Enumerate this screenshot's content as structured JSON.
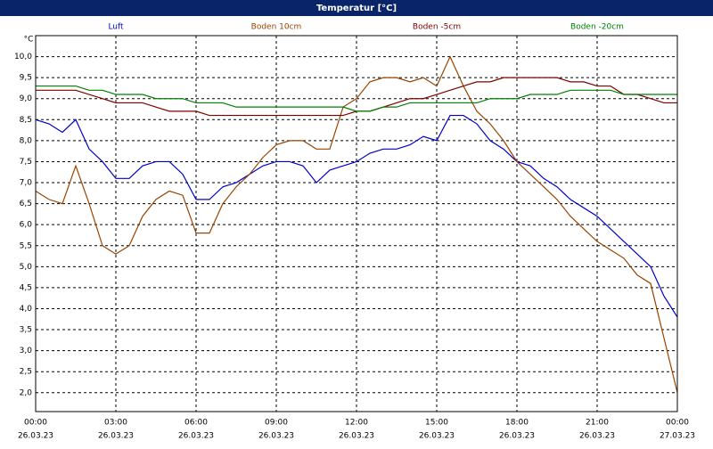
{
  "chart_data": {
    "type": "line",
    "title": "Temperatur [°C]",
    "y_unit": "°C",
    "x": [
      0,
      0.5,
      1,
      1.5,
      2,
      2.5,
      3,
      3.5,
      4,
      4.5,
      5,
      5.5,
      6,
      6.5,
      7,
      7.5,
      8,
      8.5,
      9,
      9.5,
      10,
      10.5,
      11,
      11.5,
      12,
      12.5,
      13,
      13.5,
      14,
      14.5,
      15,
      15.5,
      16,
      16.5,
      17,
      17.5,
      18,
      18.5,
      19,
      19.5,
      20,
      20.5,
      21,
      21.5,
      22,
      22.5,
      23,
      23.5,
      24
    ],
    "series": [
      {
        "name": "Luft",
        "color": "#0000cc",
        "values": [
          8.5,
          8.4,
          8.2,
          8.5,
          7.8,
          7.5,
          7.1,
          7.1,
          7.4,
          7.5,
          7.5,
          7.2,
          6.6,
          6.6,
          6.9,
          7.0,
          7.2,
          7.4,
          7.5,
          7.5,
          7.4,
          7.0,
          7.3,
          7.4,
          7.5,
          7.7,
          7.8,
          7.8,
          7.9,
          8.1,
          8.0,
          8.6,
          8.6,
          8.4,
          8.0,
          7.8,
          7.5,
          7.4,
          7.1,
          6.9,
          6.6,
          6.4,
          6.2,
          5.9,
          5.6,
          5.3,
          5.0,
          4.3,
          3.8
        ]
      },
      {
        "name": "Boden 10cm",
        "color": "#994400",
        "values": [
          6.8,
          6.6,
          6.5,
          7.4,
          6.5,
          5.5,
          5.3,
          5.5,
          6.2,
          6.6,
          6.8,
          6.7,
          5.8,
          5.8,
          6.5,
          6.9,
          7.2,
          7.6,
          7.9,
          8.0,
          8.0,
          7.8,
          7.8,
          8.8,
          9.0,
          9.4,
          9.5,
          9.5,
          9.4,
          9.5,
          9.3,
          10.0,
          9.3,
          8.7,
          8.4,
          8.0,
          7.5,
          7.2,
          6.9,
          6.6,
          6.2,
          5.9,
          5.6,
          5.4,
          5.2,
          4.8,
          4.6,
          3.3,
          2.0
        ]
      },
      {
        "name": "Boden -5cm",
        "color": "#800000",
        "values": [
          9.2,
          9.2,
          9.2,
          9.2,
          9.1,
          9.0,
          8.9,
          8.9,
          8.9,
          8.8,
          8.7,
          8.7,
          8.7,
          8.6,
          8.6,
          8.6,
          8.6,
          8.6,
          8.6,
          8.6,
          8.6,
          8.6,
          8.6,
          8.6,
          8.7,
          8.7,
          8.8,
          8.9,
          9.0,
          9.0,
          9.1,
          9.2,
          9.3,
          9.4,
          9.4,
          9.5,
          9.5,
          9.5,
          9.5,
          9.5,
          9.4,
          9.4,
          9.3,
          9.3,
          9.1,
          9.1,
          9.0,
          8.9,
          8.9
        ]
      },
      {
        "name": "Boden -20cm",
        "color": "#008000",
        "values": [
          9.3,
          9.3,
          9.3,
          9.3,
          9.2,
          9.2,
          9.1,
          9.1,
          9.1,
          9.0,
          9.0,
          9.0,
          8.9,
          8.9,
          8.9,
          8.8,
          8.8,
          8.8,
          8.8,
          8.8,
          8.8,
          8.8,
          8.8,
          8.8,
          8.7,
          8.7,
          8.8,
          8.8,
          8.9,
          8.9,
          8.9,
          8.9,
          8.9,
          8.9,
          9.0,
          9.0,
          9.0,
          9.1,
          9.1,
          9.1,
          9.2,
          9.2,
          9.2,
          9.2,
          9.1,
          9.1,
          9.1,
          9.1,
          9.1
        ]
      }
    ],
    "xlim": [
      0,
      24
    ],
    "xticks": [
      {
        "value": 0,
        "label": "00:00"
      },
      {
        "value": 3,
        "label": "03:00"
      },
      {
        "value": 6,
        "label": "06:00"
      },
      {
        "value": 9,
        "label": "09:00"
      },
      {
        "value": 12,
        "label": "12:00"
      },
      {
        "value": 15,
        "label": "15:00"
      },
      {
        "value": 18,
        "label": "18:00"
      },
      {
        "value": 21,
        "label": "21:00"
      },
      {
        "value": 24,
        "label": "00:00"
      }
    ],
    "xtick_dates": [
      "26.03.23",
      "26.03.23",
      "26.03.23",
      "26.03.23",
      "26.03.23",
      "26.03.23",
      "26.03.23",
      "26.03.23",
      "27.03.23"
    ],
    "ylim": [
      1.55,
      10.5
    ],
    "yticks": [
      {
        "value": 2,
        "label": "2,0"
      },
      {
        "value": 2.5,
        "label": "2,5"
      },
      {
        "value": 3,
        "label": "3,0"
      },
      {
        "value": 3.5,
        "label": "3,5"
      },
      {
        "value": 4,
        "label": "4,0"
      },
      {
        "value": 4.5,
        "label": "4,5"
      },
      {
        "value": 5,
        "label": "5,0"
      },
      {
        "value": 5.5,
        "label": "5,5"
      },
      {
        "value": 6,
        "label": "6,0"
      },
      {
        "value": 6.5,
        "label": "6,5"
      },
      {
        "value": 7,
        "label": "7,0"
      },
      {
        "value": 7.5,
        "label": "7,5"
      },
      {
        "value": 8,
        "label": "8,0"
      },
      {
        "value": 8.5,
        "label": "8,5"
      },
      {
        "value": 9,
        "label": "9,0"
      },
      {
        "value": 9.5,
        "label": "9,5"
      },
      {
        "value": 10,
        "label": "10,0"
      }
    ],
    "grid": true
  }
}
